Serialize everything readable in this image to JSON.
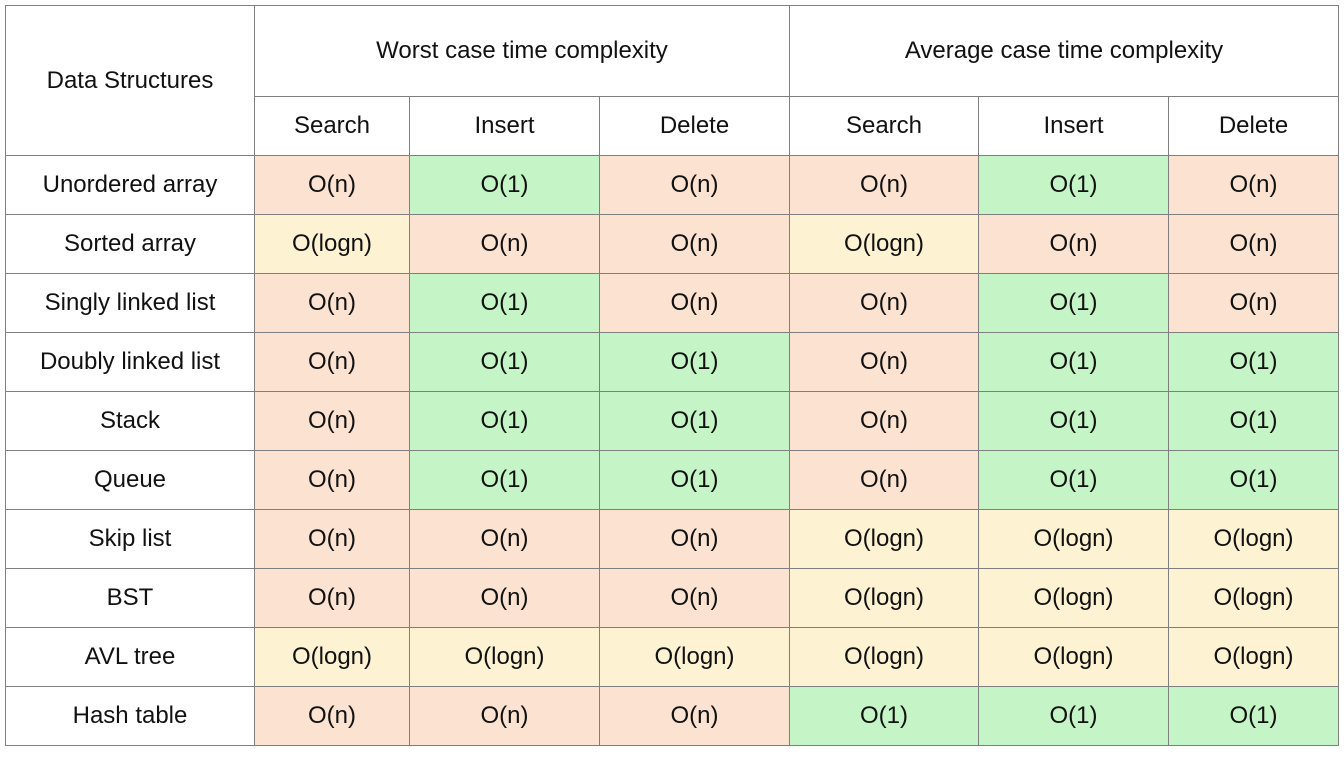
{
  "chart_data": {
    "type": "table",
    "corner_label": "Data Structures",
    "groups": [
      "Worst case time complexity",
      "Average case time complexity"
    ],
    "operations": [
      "Search",
      "Insert",
      "Delete"
    ],
    "colors": {
      "O(n)": "#fbe2d1",
      "O(1)": "#c5f5c6",
      "O(logn)": "#fdf3d3"
    },
    "rows": [
      {
        "name": "Unordered array",
        "worst": [
          "O(n)",
          "O(1)",
          "O(n)"
        ],
        "average": [
          "O(n)",
          "O(1)",
          "O(n)"
        ]
      },
      {
        "name": "Sorted array",
        "worst": [
          "O(logn)",
          "O(n)",
          "O(n)"
        ],
        "average": [
          "O(logn)",
          "O(n)",
          "O(n)"
        ]
      },
      {
        "name": "Singly linked list",
        "worst": [
          "O(n)",
          "O(1)",
          "O(n)"
        ],
        "average": [
          "O(n)",
          "O(1)",
          "O(n)"
        ]
      },
      {
        "name": "Doubly linked list",
        "worst": [
          "O(n)",
          "O(1)",
          "O(1)"
        ],
        "average": [
          "O(n)",
          "O(1)",
          "O(1)"
        ]
      },
      {
        "name": "Stack",
        "worst": [
          "O(n)",
          "O(1)",
          "O(1)"
        ],
        "average": [
          "O(n)",
          "O(1)",
          "O(1)"
        ]
      },
      {
        "name": "Queue",
        "worst": [
          "O(n)",
          "O(1)",
          "O(1)"
        ],
        "average": [
          "O(n)",
          "O(1)",
          "O(1)"
        ]
      },
      {
        "name": "Skip list",
        "worst": [
          "O(n)",
          "O(n)",
          "O(n)"
        ],
        "average": [
          "O(logn)",
          "O(logn)",
          "O(logn)"
        ]
      },
      {
        "name": "BST",
        "worst": [
          "O(n)",
          "O(n)",
          "O(n)"
        ],
        "average": [
          "O(logn)",
          "O(logn)",
          "O(logn)"
        ]
      },
      {
        "name": "AVL tree",
        "worst": [
          "O(logn)",
          "O(logn)",
          "O(logn)"
        ],
        "average": [
          "O(logn)",
          "O(logn)",
          "O(logn)"
        ]
      },
      {
        "name": "Hash table",
        "worst": [
          "O(n)",
          "O(n)",
          "O(n)"
        ],
        "average": [
          "O(1)",
          "O(1)",
          "O(1)"
        ]
      }
    ]
  }
}
